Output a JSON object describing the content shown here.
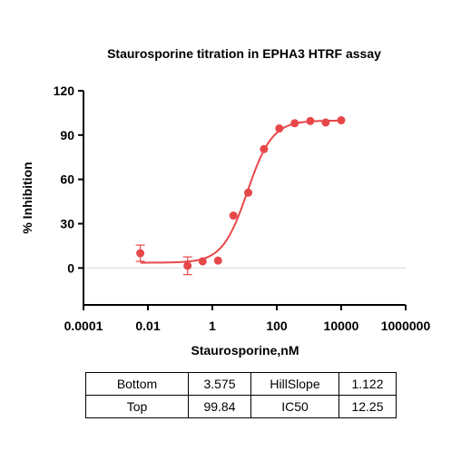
{
  "chart_data": {
    "type": "scatter",
    "title": "Staurosporine titration in EPHA3 HTRF assay",
    "xlabel": "Staurosporine,nM",
    "ylabel": "% Inhibition",
    "xscale": "log",
    "xlim": [
      0.0001,
      1000000
    ],
    "ylim": [
      -25,
      120
    ],
    "xticks": [
      0.0001,
      0.01,
      1,
      100,
      10000,
      1000000
    ],
    "xtick_labels": [
      "0.0001",
      "0.01",
      "1",
      "100",
      "10000",
      "1000000"
    ],
    "yticks": [
      0,
      30,
      60,
      90,
      120
    ],
    "ytick_labels": [
      "0",
      "30",
      "60",
      "90",
      "120"
    ],
    "reference_line_y": 0,
    "color": "#e8474a",
    "points": [
      {
        "x": 0.0058,
        "y": 10,
        "err": 5.5
      },
      {
        "x": 0.17,
        "y": 1.5,
        "err": 6
      },
      {
        "x": 0.5,
        "y": 4.5
      },
      {
        "x": 1.5,
        "y": 5
      },
      {
        "x": 4.5,
        "y": 35.5
      },
      {
        "x": 13,
        "y": 51
      },
      {
        "x": 40,
        "y": 80.5
      },
      {
        "x": 120,
        "y": 94.5
      },
      {
        "x": 360,
        "y": 98
      },
      {
        "x": 1100,
        "y": 99.5
      },
      {
        "x": 3300,
        "y": 98.5
      },
      {
        "x": 10000,
        "y": 100
      }
    ],
    "fit": {
      "model": "4PL",
      "bottom": 3.575,
      "top": 99.84,
      "hillslope": 1.122,
      "ic50": 12.25,
      "x_range": [
        0.0058,
        10000
      ]
    },
    "parameters_table": [
      [
        "Bottom",
        "3.575",
        "HillSlope",
        "1.122"
      ],
      [
        "Top",
        "99.84",
        "IC50",
        "12.25"
      ]
    ]
  }
}
